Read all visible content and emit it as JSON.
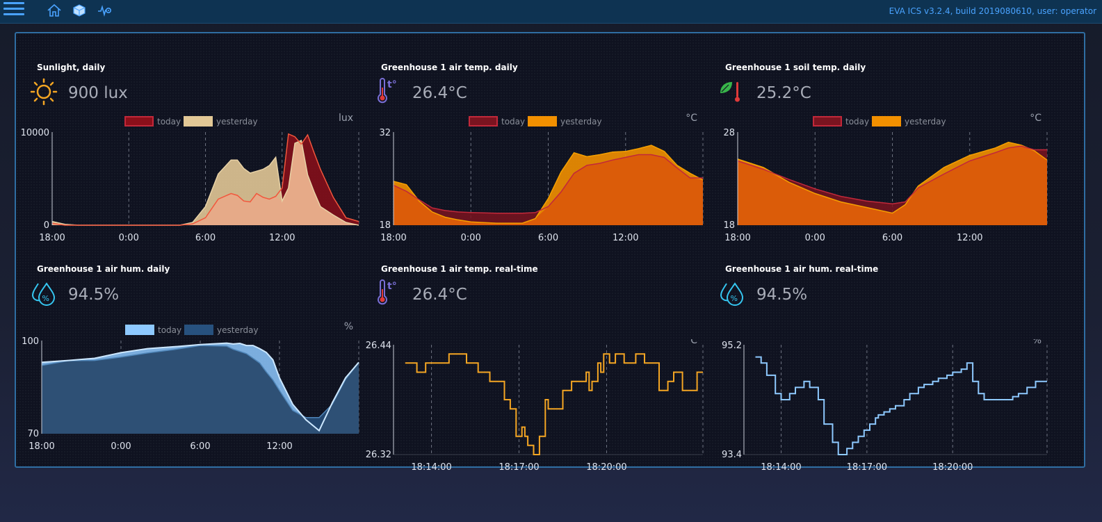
{
  "topbar": {
    "version_text": "EVA ICS v3.2.4, build 2019080610, user: operator",
    "icons": [
      "menu-icon",
      "home-icon",
      "cube-icon",
      "sensor-icon"
    ]
  },
  "widgets": [
    {
      "title": "Sunlight, daily",
      "value": "900 lux",
      "icon": "sun-icon",
      "unit": "lux",
      "chart_data": {
        "type": "area",
        "legend": [
          "today",
          "yesterday"
        ],
        "x_ticks": [
          "18:00",
          "0:00",
          "6:00",
          "12:00"
        ],
        "y_ticks": [
          "10000",
          "0"
        ],
        "ylim": [
          0,
          10000
        ],
        "x": [
          18,
          19,
          20,
          22,
          24,
          26,
          28,
          29,
          30,
          31,
          32,
          32.5,
          33,
          33.5,
          34,
          34.5,
          35,
          35.5,
          36,
          36.5,
          37,
          37.5,
          38,
          38.5,
          39,
          40,
          41,
          42
        ],
        "series": [
          {
            "name": "today",
            "values": [
              200,
              0,
              0,
              0,
              0,
              0,
              0,
              150,
              800,
              2800,
              3400,
              3200,
              2600,
              2500,
              3400,
              3000,
              2800,
              3100,
              4000,
              9800,
              9500,
              8700,
              9700,
              7800,
              6000,
              3000,
              800,
              400
            ]
          },
          {
            "name": "yesterday",
            "values": [
              400,
              100,
              0,
              0,
              0,
              0,
              0,
              300,
              2000,
              5500,
              7000,
              7000,
              6100,
              5600,
              5800,
              6000,
              6400,
              7300,
              2600,
              4000,
              8800,
              9100,
              5400,
              3600,
              2000,
              1100,
              300,
              0
            ]
          }
        ],
        "colors": {
          "today": "#8b0f1a",
          "yesterday": "#e2c896",
          "overlap": "#e8a888"
        }
      }
    },
    {
      "title": "Greenhouse 1 air temp. daily",
      "value": "26.4°C",
      "icon": "thermometer-icon",
      "unit": "°C",
      "chart_data": {
        "type": "area",
        "legend": [
          "today",
          "yesterday"
        ],
        "x_ticks": [
          "18:00",
          "0:00",
          "6:00",
          "12:00"
        ],
        "y_ticks": [
          "32",
          "18"
        ],
        "ylim": [
          18,
          32
        ],
        "x": [
          18,
          19,
          20,
          21,
          22,
          23,
          24,
          26,
          28,
          29,
          30,
          31,
          32,
          33,
          34,
          35,
          36,
          37,
          38,
          39,
          40,
          41,
          42
        ],
        "series": [
          {
            "name": "today",
            "values": [
              24.0,
              23.1,
              21.8,
              20.6,
              20.2,
              20.0,
              19.9,
              19.8,
              19.8,
              19.9,
              20.8,
              23.0,
              25.8,
              27.0,
              27.3,
              27.8,
              28.2,
              28.6,
              28.6,
              28.2,
              26.6,
              25.1,
              25.1
            ]
          },
          {
            "name": "yesterday",
            "values": [
              24.6,
              24.1,
              21.6,
              20.0,
              19.2,
              18.8,
              18.5,
              18.3,
              18.3,
              19.0,
              22.0,
              26.0,
              28.9,
              28.3,
              28.6,
              29.0,
              29.1,
              29.5,
              30.0,
              29.1,
              27.0,
              25.8,
              24.8
            ]
          }
        ],
        "colors": {
          "today": "#7a1420",
          "yesterday": "#f29000",
          "overlap": "#d9580a"
        }
      }
    },
    {
      "title": "Greenhouse 1 soil temp. daily",
      "value": "25.2°C",
      "icon": "soil-thermometer-icon",
      "unit": "°C",
      "chart_data": {
        "type": "area",
        "legend": [
          "today",
          "yesterday"
        ],
        "x_ticks": [
          "18:00",
          "0:00",
          "6:00",
          "12:00"
        ],
        "y_ticks": [
          "28",
          "18"
        ],
        "ylim": [
          18,
          28
        ],
        "x": [
          18,
          20,
          22,
          24,
          26,
          28,
          30,
          31,
          32,
          34,
          36,
          38,
          39,
          40,
          41,
          42
        ],
        "series": [
          {
            "name": "today",
            "values": [
              24.9,
              24.0,
              22.9,
              21.9,
              21.1,
              20.6,
              20.3,
              20.5,
              22.0,
              23.5,
              24.9,
              25.8,
              26.3,
              26.5,
              26.1,
              26.1
            ]
          },
          {
            "name": "yesterday",
            "values": [
              25.1,
              24.2,
              22.6,
              21.4,
              20.5,
              19.9,
              19.3,
              20.2,
              22.2,
              24.2,
              25.5,
              26.3,
              26.9,
              26.6,
              26.0,
              25.0
            ]
          }
        ],
        "colors": {
          "today": "#7a1420",
          "yesterday": "#f29000",
          "overlap": "#d9580a"
        }
      }
    },
    {
      "title": "Greenhouse 1 air hum. daily",
      "value": "94.5%",
      "icon": "humidity-icon",
      "unit": "%",
      "chart_data": {
        "type": "area",
        "legend": [
          "today",
          "yesterday"
        ],
        "x_ticks": [
          "18:00",
          "0:00",
          "6:00",
          "12:00"
        ],
        "y_ticks": [
          "100",
          "70"
        ],
        "ylim": [
          70,
          100
        ],
        "x": [
          18,
          20,
          22,
          24,
          26,
          28,
          30,
          32,
          32.5,
          33,
          33.5,
          34,
          34.5,
          35,
          35.5,
          36,
          37,
          38,
          39,
          40,
          41,
          42
        ],
        "series": [
          {
            "name": "today",
            "values": [
              93.0,
              93.6,
              94.3,
              96.1,
              97.4,
              98.0,
              98.7,
              99.2,
              98.9,
              99.1,
              98.4,
              98.4,
              97.4,
              96.2,
              93.8,
              88.0,
              79.5,
              74.5,
              71.0,
              80.0,
              88.0,
              93.0
            ]
          },
          {
            "name": "yesterday",
            "values": [
              92.0,
              93.5,
              93.6,
              94.7,
              96.0,
              97.1,
              98.4,
              98.2,
              97.2,
              96.5,
              95.8,
              94.3,
              92.8,
              89.9,
              87.3,
              83.9,
              77.5,
              75.2,
              75.2,
              79.5,
              87.5,
              93.0
            ]
          }
        ],
        "colors": {
          "today": "#8ec9ff",
          "yesterday": "#27517e",
          "overlap": "#2e4f72"
        }
      }
    },
    {
      "title": "Greenhouse 1 air temp. real-time",
      "value": "26.4°C",
      "icon": "thermometer-icon",
      "unit": "°C",
      "chart_data": {
        "type": "line",
        "step": true,
        "x_ticks": [
          "18:14:00",
          "18:17:00",
          "18:20:00"
        ],
        "y_ticks": [
          "26.44",
          "26.32"
        ],
        "ylim": [
          26.32,
          26.44
        ],
        "x_minutes": [
          12.8,
          13.2,
          13.5,
          14.3,
          14.9,
          15.3,
          15.7,
          16.2,
          16.4,
          16.6,
          16.8,
          16.9,
          17.0,
          17.2,
          17.4,
          17.6,
          17.7,
          18.2,
          18.5,
          19.0,
          19.1,
          19.2,
          19.4,
          19.5,
          19.6,
          19.8,
          20.0,
          20.3,
          20.7,
          21.0,
          21.5,
          21.8,
          22.0,
          22.3,
          22.8
        ],
        "values": [
          26.42,
          26.41,
          26.42,
          26.43,
          26.42,
          26.41,
          26.4,
          26.38,
          26.37,
          26.34,
          26.35,
          26.34,
          26.33,
          26.32,
          26.34,
          26.38,
          26.37,
          26.39,
          26.4,
          26.41,
          26.39,
          26.4,
          26.42,
          26.41,
          26.43,
          26.42,
          26.43,
          26.42,
          26.43,
          26.42,
          26.39,
          26.4,
          26.41,
          26.39,
          26.41
        ],
        "colors": {
          "line": "#f5a623"
        }
      }
    },
    {
      "title": "Greenhouse 1 air hum. real-time",
      "value": "94.5%",
      "icon": "humidity-icon",
      "unit": "%",
      "chart_data": {
        "type": "line",
        "step": true,
        "x_ticks": [
          "18:14:00",
          "18:17:00",
          "18:20:00"
        ],
        "y_ticks": [
          "95.2",
          "93.4"
        ],
        "ylim": [
          93.4,
          95.2
        ],
        "x_minutes": [
          12.8,
          13.0,
          13.2,
          13.5,
          13.7,
          14.0,
          14.2,
          14.5,
          14.7,
          15.0,
          15.2,
          15.5,
          15.7,
          16.0,
          16.2,
          16.4,
          16.6,
          16.8,
          17.0,
          17.1,
          17.3,
          17.5,
          17.7,
          18.0,
          18.2,
          18.5,
          18.7,
          19.0,
          19.2,
          19.5,
          19.7,
          20.0,
          20.2,
          20.4,
          20.6,
          20.8,
          21.0,
          21.3,
          21.6,
          21.8,
          22.0,
          22.3,
          22.6,
          22.8
        ],
        "values": [
          95.0,
          94.9,
          94.7,
          94.4,
          94.3,
          94.4,
          94.5,
          94.6,
          94.5,
          94.3,
          93.9,
          93.6,
          93.4,
          93.5,
          93.6,
          93.7,
          93.8,
          93.9,
          94.0,
          94.05,
          94.1,
          94.15,
          94.2,
          94.3,
          94.4,
          94.5,
          94.55,
          94.6,
          94.65,
          94.7,
          94.75,
          94.8,
          94.9,
          94.6,
          94.4,
          94.3,
          94.3,
          94.3,
          94.3,
          94.35,
          94.4,
          94.5,
          94.6,
          94.6
        ],
        "colors": {
          "line": "#8ec9ff"
        }
      }
    }
  ]
}
